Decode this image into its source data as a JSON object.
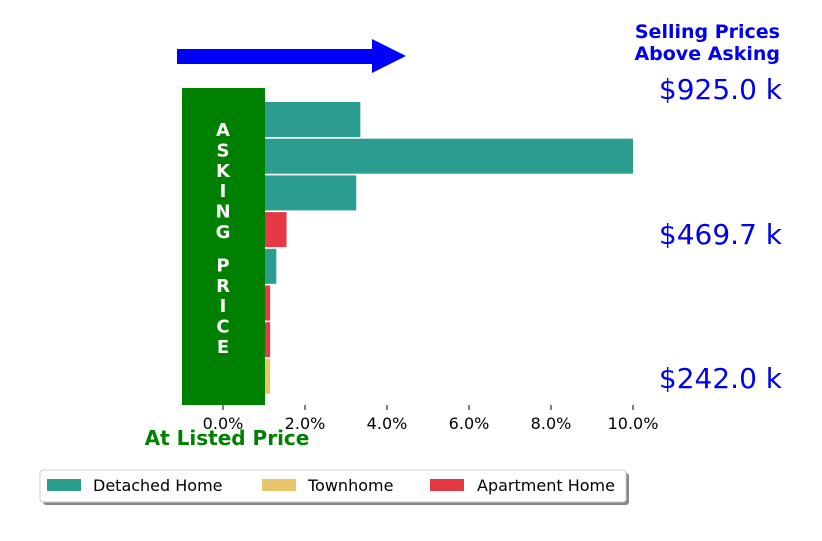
{
  "chart_data": {
    "type": "bar",
    "orientation": "horizontal",
    "title": "Selling Prices Above Asking",
    "xlabel": "At Listed Price",
    "xlim": [
      -1.0,
      10.0
    ],
    "xticks": [
      "0.0%",
      "2.0%",
      "4.0%",
      "6.0%",
      "8.0%",
      "10.0%"
    ],
    "xtick_values": [
      0,
      2,
      4,
      6,
      8,
      10
    ],
    "asking_price_band": {
      "label": "ASKING PRICE",
      "x_range": [
        -1.0,
        1.0
      ],
      "color": "#008000"
    },
    "price_labels": [
      "$925.0 k",
      "$469.7 k",
      "$242.0 k"
    ],
    "bars": [
      {
        "category": "Detached Home",
        "value": 3.35
      },
      {
        "category": "Detached Home",
        "value": 10.0
      },
      {
        "category": "Detached Home",
        "value": 3.25
      },
      {
        "category": "Apartment Home",
        "value": 1.55
      },
      {
        "category": "Detached Home",
        "value": 1.3
      },
      {
        "category": "Apartment Home",
        "value": 1.15
      },
      {
        "category": "Apartment Home",
        "value": 1.15
      },
      {
        "category": "Townhome",
        "value": 1.15
      }
    ],
    "legend": [
      {
        "name": "Detached Home",
        "color": "#2a9d8f"
      },
      {
        "name": "Townhome",
        "color": "#e9c46a"
      },
      {
        "name": "Apartment Home",
        "color": "#e63946"
      }
    ],
    "legend_placement": "bottom",
    "arrow_color": "#0000ff",
    "grid": false
  }
}
